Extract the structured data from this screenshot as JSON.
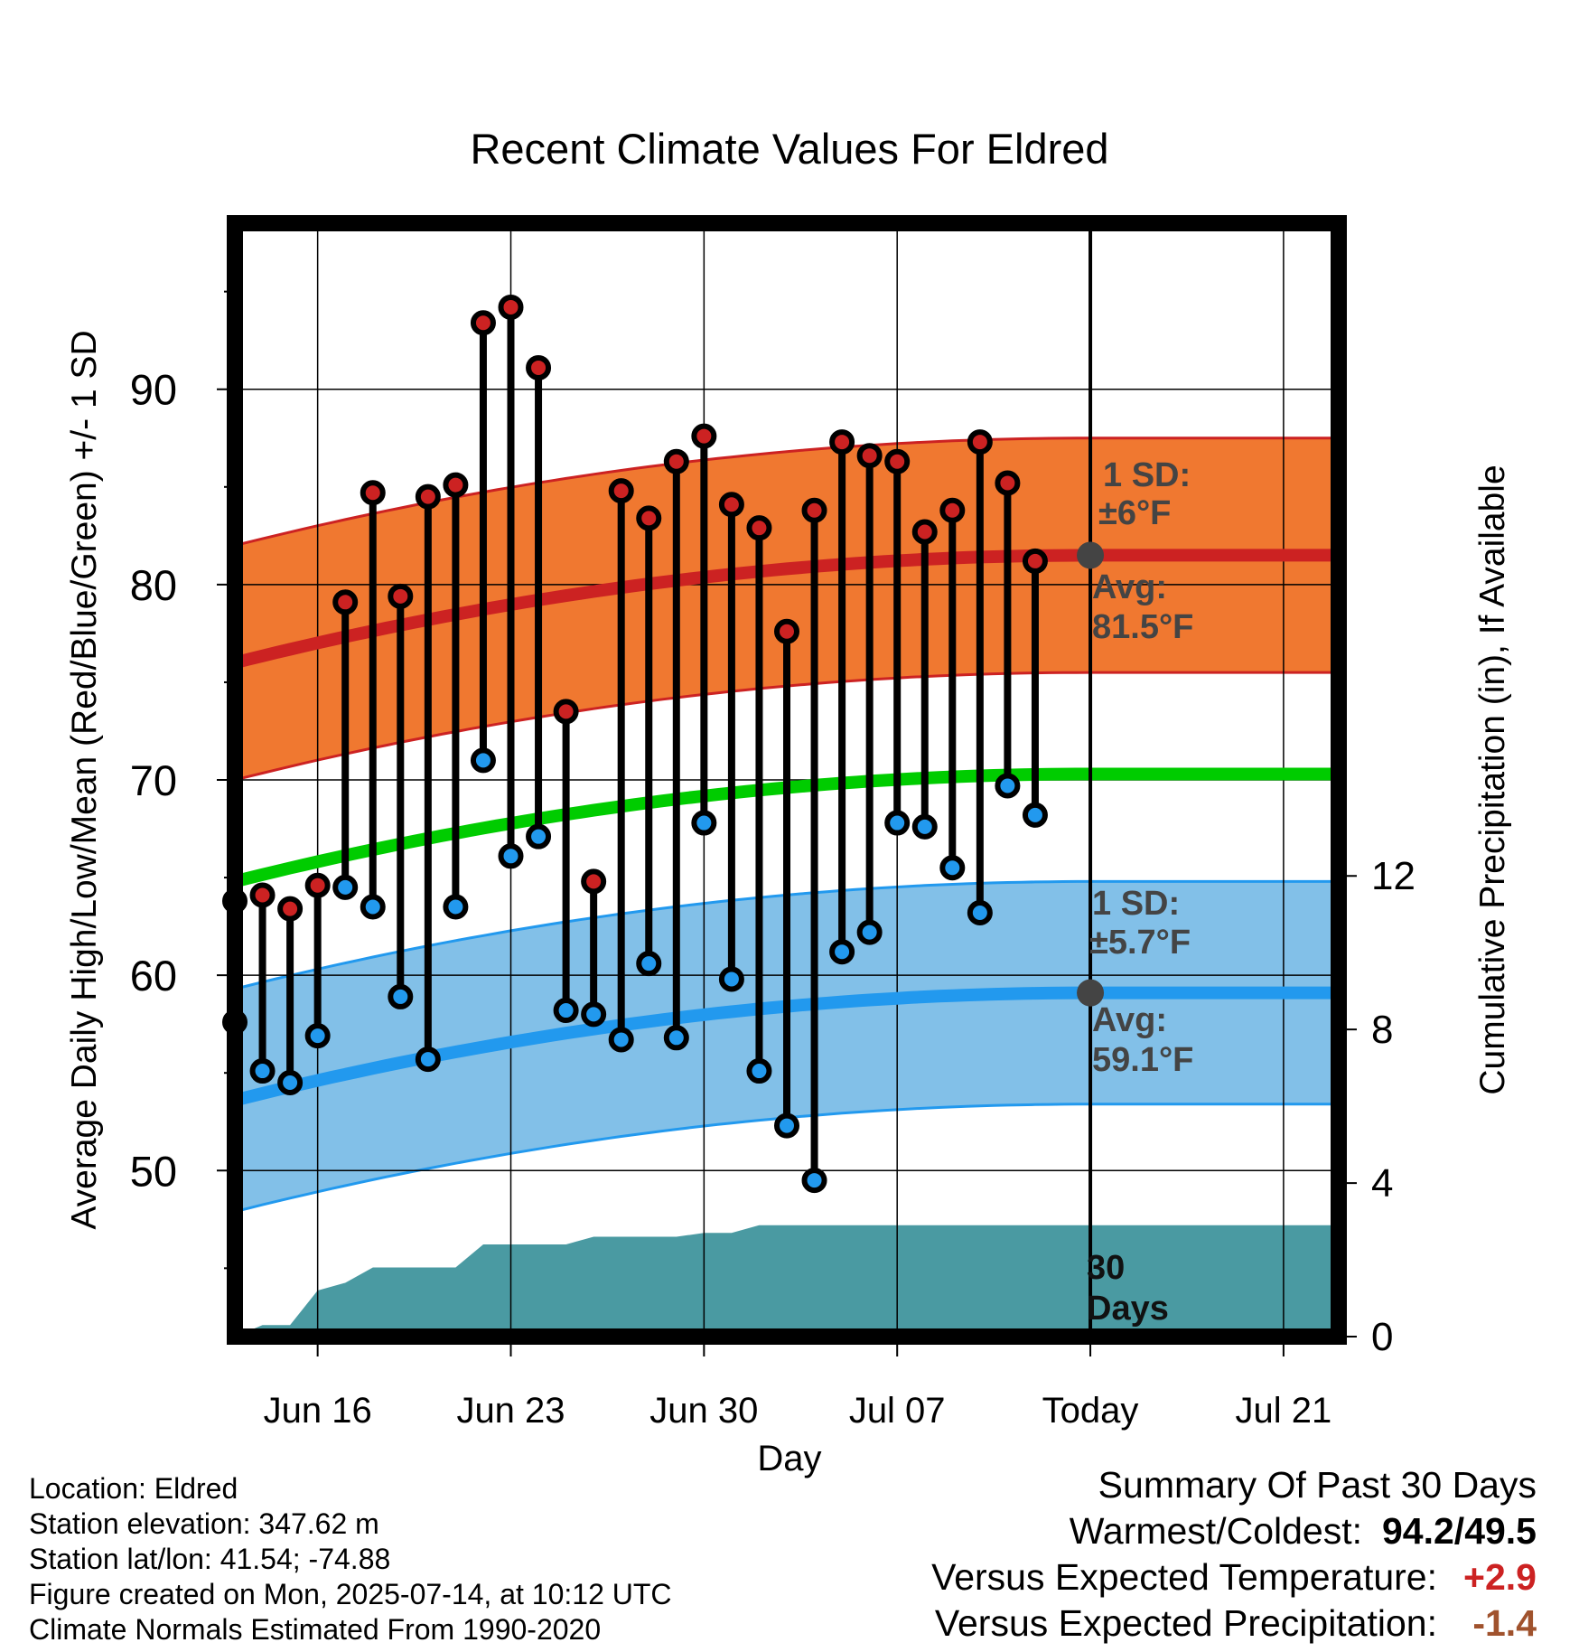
{
  "chart_data": {
    "type": "line",
    "title": "Recent Climate Values For Eldred",
    "xlabel": "Day",
    "ylabel_left": "Average Daily High/Low/Mean (Red/Blue/Green) +/- 1 SD",
    "ylabel_right": "Cumulative Precipitation (in), If Available",
    "x_tick_labels": [
      "Jun 16",
      "Jun 23",
      "Jun 30",
      "Jul 07",
      "Today",
      "Jul 21"
    ],
    "y_ticks_left": [
      50,
      60,
      70,
      80,
      90
    ],
    "y_ticks_right": [
      0,
      4,
      8,
      12
    ],
    "ylim_left": [
      41.5,
      98.5
    ],
    "ylim_right": [
      0,
      29
    ],
    "x_start": "2025-06-13",
    "x_end": "2025-07-23",
    "today": "2025-07-14",
    "grid": true,
    "daily_highs": [
      63.8,
      64.1,
      63.4,
      64.6,
      79.1,
      84.7,
      79.4,
      84.5,
      85.1,
      93.4,
      94.2,
      91.1,
      73.5,
      64.8,
      84.8,
      83.4,
      86.3,
      87.6,
      84.1,
      82.9,
      77.6,
      83.8,
      87.3,
      86.6,
      86.3,
      82.7,
      83.8,
      87.3,
      85.2,
      81.2
    ],
    "daily_lows": [
      57.6,
      55.1,
      54.5,
      56.9,
      64.5,
      63.5,
      58.9,
      55.7,
      63.5,
      71.0,
      66.1,
      67.1,
      58.2,
      58.0,
      56.7,
      60.6,
      56.8,
      67.8,
      59.8,
      55.1,
      52.3,
      49.5,
      61.2,
      62.2,
      67.8,
      67.6,
      65.5,
      63.2,
      69.7,
      68.2
    ],
    "high_normal": {
      "start": 76.0,
      "end": 81.5,
      "sd": 6,
      "sd_label": "1 SD:",
      "sd_value": "±6°F",
      "avg_label": "Avg:",
      "avg_value": "81.5°F"
    },
    "low_normal": {
      "start": 53.6,
      "end": 59.1,
      "sd": 5.7,
      "sd_label": "1 SD:",
      "sd_value": "±5.7°F",
      "avg_label": "Avg:",
      "avg_value": "59.1°F"
    },
    "mean_normal": {
      "start": 64.8,
      "end": 70.3
    },
    "cumulative_precip": [
      0.0,
      0.3,
      0.3,
      1.2,
      1.4,
      1.8,
      1.8,
      1.8,
      1.8,
      2.4,
      2.4,
      2.4,
      2.4,
      2.6,
      2.6,
      2.6,
      2.6,
      2.7,
      2.7,
      2.9,
      2.9,
      2.9,
      2.9,
      2.9,
      2.9,
      2.9,
      2.9,
      2.9,
      2.9,
      2.9
    ],
    "period_label": "30 Days",
    "colors": {
      "high": "#cc2222",
      "low": "#2299ee",
      "mean": "#00cc00",
      "high_band": "#f07830",
      "low_band": "#82c0e8",
      "precip": "#4a9aa2",
      "warm_anomaly": "#cc2222",
      "precip_anomaly": "#a0522d"
    }
  },
  "footer": {
    "location": "Location: Eldred",
    "elevation": "Station elevation: 347.62 m",
    "latlon": "Station lat/lon: 41.54; -74.88",
    "created": "Figure created on Mon, 2025-07-14, at 10:12 UTC",
    "normals": "Climate Normals Estimated From 1990-2020"
  },
  "summary": {
    "title": "Summary Of Past 30 Days",
    "warm_cold_label": "Warmest/Coldest:",
    "warm_cold_value": "94.2/49.5",
    "temp_label": "Versus Expected Temperature:",
    "temp_value": "+2.9",
    "precip_label": "Versus Expected Precipitation:",
    "precip_value": "-1.4"
  }
}
